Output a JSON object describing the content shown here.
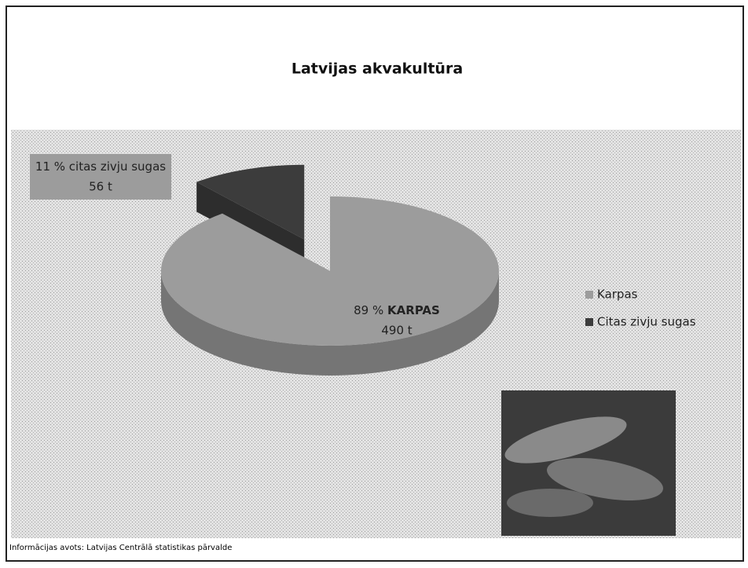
{
  "chart_data": {
    "type": "pie",
    "title": "Latvijas akvakultūra",
    "categories": [
      "Karpas",
      "Citas zivju sugas"
    ],
    "values": [
      89,
      11
    ],
    "value_labels": [
      "89 %",
      "11 %"
    ],
    "label_texts": [
      "KARPAS",
      "citas zivju sugas"
    ],
    "amount_labels": [
      "490 t",
      "56 t"
    ],
    "colors": [
      "#9c9c9c",
      "#3c3c3c"
    ],
    "exploded": [
      false,
      true
    ],
    "legend": "right",
    "source": "Informācijas avots: Latvijas Centrālā statistikas pārvalde"
  }
}
